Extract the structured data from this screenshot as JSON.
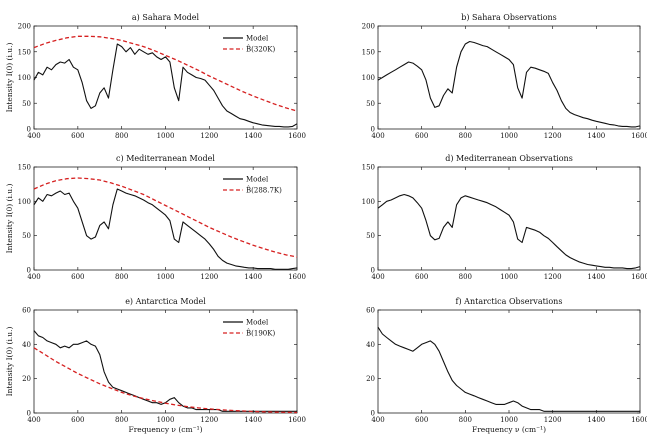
{
  "figure": {
    "xlabel": "Frequency ν (cm⁻¹)",
    "ylabel": "Intensity I(0) (i.u.)"
  },
  "colors": {
    "model": "#111111",
    "planck": "#d62020"
  },
  "chart_data": [
    {
      "id": "a",
      "type": "line",
      "title": "a) Sahara Model",
      "xlim": [
        400,
        1600
      ],
      "ylim": [
        0,
        200
      ],
      "xticks": [
        400,
        600,
        800,
        1000,
        1200,
        1400,
        1600
      ],
      "yticks": [
        0,
        50,
        100,
        150,
        200
      ],
      "ylabel": "Intensity I(0) (i.u.)",
      "xlabel": "",
      "legend": "top-right",
      "series": [
        {
          "name": "Model",
          "style": "solid",
          "color": "#111111",
          "x": [
            400,
            420,
            440,
            460,
            480,
            500,
            520,
            540,
            560,
            580,
            600,
            620,
            640,
            660,
            680,
            700,
            720,
            740,
            760,
            780,
            800,
            820,
            840,
            860,
            880,
            900,
            920,
            940,
            960,
            980,
            1000,
            1020,
            1040,
            1060,
            1080,
            1100,
            1120,
            1140,
            1160,
            1180,
            1200,
            1220,
            1240,
            1260,
            1280,
            1300,
            1320,
            1340,
            1360,
            1380,
            1400,
            1420,
            1440,
            1460,
            1480,
            1500,
            1520,
            1540,
            1560,
            1580,
            1600
          ],
          "y": [
            95,
            110,
            105,
            120,
            115,
            125,
            130,
            128,
            135,
            120,
            115,
            90,
            55,
            40,
            45,
            70,
            80,
            60,
            115,
            165,
            160,
            150,
            158,
            145,
            155,
            150,
            145,
            148,
            140,
            135,
            140,
            130,
            80,
            55,
            120,
            110,
            105,
            100,
            98,
            95,
            85,
            75,
            60,
            45,
            35,
            30,
            25,
            20,
            18,
            15,
            12,
            10,
            8,
            7,
            6,
            5,
            5,
            4,
            4,
            5,
            10
          ]
        },
        {
          "name": "B̂(320K)",
          "style": "dashed",
          "color": "#d62020",
          "x": [
            400,
            450,
            500,
            550,
            600,
            650,
            700,
            750,
            800,
            850,
            900,
            950,
            1000,
            1050,
            1100,
            1150,
            1200,
            1250,
            1300,
            1350,
            1400,
            1450,
            1500,
            1550,
            1600
          ],
          "y": [
            158,
            166,
            172,
            177,
            180,
            180,
            179,
            176,
            172,
            166,
            160,
            152,
            143,
            134,
            124,
            114,
            103,
            93,
            83,
            73,
            64,
            56,
            48,
            41,
            35
          ]
        }
      ]
    },
    {
      "id": "b",
      "type": "line",
      "title": "b) Sahara Observations",
      "xlim": [
        400,
        1600
      ],
      "ylim": [
        0,
        200
      ],
      "xticks": [
        400,
        600,
        800,
        1000,
        1200,
        1400,
        1600
      ],
      "yticks": [
        0,
        50,
        100,
        150,
        200
      ],
      "ylabel": "",
      "xlabel": "",
      "legend": "none",
      "series": [
        {
          "name": "",
          "style": "solid",
          "color": "#111111",
          "x": [
            400,
            420,
            440,
            460,
            480,
            500,
            520,
            540,
            560,
            580,
            600,
            620,
            640,
            660,
            680,
            700,
            720,
            740,
            760,
            780,
            800,
            820,
            840,
            860,
            880,
            900,
            920,
            940,
            960,
            980,
            1000,
            1020,
            1040,
            1060,
            1080,
            1100,
            1120,
            1140,
            1160,
            1180,
            1200,
            1220,
            1240,
            1260,
            1280,
            1300,
            1320,
            1340,
            1360,
            1380,
            1400,
            1420,
            1440,
            1460,
            1480,
            1500,
            1520,
            1540,
            1560,
            1580,
            1600
          ],
          "y": [
            95,
            100,
            105,
            110,
            115,
            120,
            125,
            130,
            128,
            122,
            115,
            95,
            60,
            42,
            45,
            65,
            78,
            70,
            120,
            150,
            165,
            170,
            168,
            165,
            162,
            160,
            155,
            150,
            145,
            140,
            135,
            125,
            80,
            60,
            110,
            120,
            118,
            115,
            112,
            108,
            90,
            75,
            55,
            40,
            32,
            28,
            25,
            22,
            20,
            17,
            15,
            13,
            11,
            9,
            8,
            6,
            5,
            5,
            4,
            4,
            6
          ]
        }
      ]
    },
    {
      "id": "c",
      "type": "line",
      "title": "c) Mediterranean Model",
      "xlim": [
        400,
        1600
      ],
      "ylim": [
        0,
        150
      ],
      "xticks": [
        400,
        600,
        800,
        1000,
        1200,
        1400,
        1600
      ],
      "yticks": [
        0,
        50,
        100,
        150
      ],
      "ylabel": "Intensity I(0) (i.u.)",
      "xlabel": "",
      "legend": "top-right",
      "series": [
        {
          "name": "Model",
          "style": "solid",
          "color": "#111111",
          "x": [
            400,
            420,
            440,
            460,
            480,
            500,
            520,
            540,
            560,
            580,
            600,
            620,
            640,
            660,
            680,
            700,
            720,
            740,
            760,
            780,
            800,
            820,
            840,
            860,
            880,
            900,
            920,
            940,
            960,
            980,
            1000,
            1020,
            1040,
            1060,
            1080,
            1100,
            1120,
            1140,
            1160,
            1180,
            1200,
            1220,
            1240,
            1260,
            1280,
            1300,
            1320,
            1340,
            1360,
            1380,
            1400,
            1420,
            1440,
            1460,
            1480,
            1500,
            1520,
            1540,
            1560,
            1580,
            1600
          ],
          "y": [
            95,
            105,
            100,
            110,
            108,
            112,
            115,
            110,
            112,
            100,
            90,
            70,
            50,
            45,
            48,
            65,
            70,
            60,
            95,
            118,
            115,
            112,
            110,
            108,
            105,
            102,
            98,
            95,
            90,
            85,
            80,
            72,
            45,
            40,
            70,
            65,
            60,
            55,
            50,
            45,
            38,
            30,
            20,
            14,
            10,
            8,
            6,
            5,
            4,
            3,
            3,
            2,
            2,
            2,
            2,
            1,
            1,
            1,
            1,
            2,
            3
          ]
        },
        {
          "name": "B̂(288.7K)",
          "style": "dashed",
          "color": "#d62020",
          "x": [
            400,
            450,
            500,
            550,
            600,
            650,
            700,
            750,
            800,
            850,
            900,
            950,
            1000,
            1050,
            1100,
            1150,
            1200,
            1250,
            1300,
            1350,
            1400,
            1450,
            1500,
            1550,
            1600
          ],
          "y": [
            118,
            125,
            130,
            133,
            134,
            133,
            131,
            127,
            122,
            116,
            110,
            102,
            94,
            86,
            78,
            70,
            62,
            55,
            48,
            42,
            36,
            31,
            26,
            22,
            19
          ]
        }
      ]
    },
    {
      "id": "d",
      "type": "line",
      "title": "d) Mediterranean Observations",
      "xlim": [
        400,
        1600
      ],
      "ylim": [
        0,
        150
      ],
      "xticks": [
        400,
        600,
        800,
        1000,
        1200,
        1400,
        1600
      ],
      "yticks": [
        0,
        50,
        100,
        150
      ],
      "ylabel": "",
      "xlabel": "",
      "legend": "none",
      "series": [
        {
          "name": "",
          "style": "solid",
          "color": "#111111",
          "x": [
            400,
            420,
            440,
            460,
            480,
            500,
            520,
            540,
            560,
            580,
            600,
            620,
            640,
            660,
            680,
            700,
            720,
            740,
            760,
            780,
            800,
            820,
            840,
            860,
            880,
            900,
            920,
            940,
            960,
            980,
            1000,
            1020,
            1040,
            1060,
            1080,
            1100,
            1120,
            1140,
            1160,
            1180,
            1200,
            1220,
            1240,
            1260,
            1280,
            1300,
            1320,
            1340,
            1360,
            1380,
            1400,
            1420,
            1440,
            1460,
            1480,
            1500,
            1520,
            1540,
            1560,
            1580,
            1600
          ],
          "y": [
            90,
            95,
            100,
            102,
            105,
            108,
            110,
            108,
            105,
            98,
            90,
            72,
            50,
            44,
            46,
            62,
            70,
            62,
            95,
            105,
            108,
            106,
            104,
            102,
            100,
            98,
            95,
            92,
            88,
            84,
            80,
            70,
            45,
            40,
            62,
            60,
            58,
            55,
            50,
            46,
            40,
            34,
            28,
            22,
            18,
            15,
            12,
            10,
            8,
            7,
            6,
            5,
            4,
            4,
            3,
            3,
            3,
            2,
            2,
            3,
            5
          ]
        }
      ]
    },
    {
      "id": "e",
      "type": "line",
      "title": "e) Antarctica Model",
      "xlim": [
        400,
        1600
      ],
      "ylim": [
        0,
        60
      ],
      "xticks": [
        400,
        600,
        800,
        1000,
        1200,
        1400,
        1600
      ],
      "yticks": [
        0,
        20,
        40,
        60
      ],
      "ylabel": "Intensity I(0) (i.u.)",
      "xlabel": "Frequency ν (cm⁻¹)",
      "legend": "top-right",
      "series": [
        {
          "name": "Model",
          "style": "solid",
          "color": "#111111",
          "x": [
            400,
            420,
            440,
            460,
            480,
            500,
            520,
            540,
            560,
            580,
            600,
            620,
            640,
            660,
            680,
            700,
            720,
            740,
            760,
            780,
            800,
            820,
            840,
            860,
            880,
            900,
            920,
            940,
            960,
            980,
            1000,
            1020,
            1040,
            1060,
            1080,
            1100,
            1120,
            1140,
            1160,
            1180,
            1200,
            1220,
            1240,
            1260,
            1280,
            1300,
            1320,
            1340,
            1360,
            1380,
            1400,
            1420,
            1440,
            1460,
            1480,
            1500,
            1520,
            1540,
            1560,
            1580,
            1600
          ],
          "y": [
            48,
            45,
            44,
            42,
            41,
            40,
            38,
            39,
            38,
            40,
            40,
            41,
            42,
            40,
            39,
            34,
            24,
            18,
            15,
            14,
            13,
            12,
            11,
            10,
            9,
            8,
            7,
            6,
            6,
            5,
            6,
            8,
            9,
            6,
            4,
            3,
            3,
            2,
            2,
            2,
            2,
            2,
            2,
            1,
            1,
            1,
            1,
            1,
            1,
            1,
            1,
            1,
            1,
            1,
            1,
            1,
            1,
            1,
            1,
            1,
            1
          ]
        },
        {
          "name": "B̂(190K)",
          "style": "dashed",
          "color": "#d62020",
          "x": [
            400,
            450,
            500,
            550,
            600,
            650,
            700,
            750,
            800,
            850,
            900,
            950,
            1000,
            1050,
            1100,
            1150,
            1200,
            1250,
            1300,
            1350,
            1400,
            1450,
            1500,
            1550,
            1600
          ],
          "y": [
            38,
            34,
            30,
            26.5,
            23,
            20,
            17,
            14.5,
            12,
            10,
            8.4,
            7,
            5.7,
            4.6,
            3.7,
            3.0,
            2.4,
            1.9,
            1.5,
            1.2,
            0.9,
            0.7,
            0.55,
            0.42,
            0.32
          ]
        }
      ]
    },
    {
      "id": "f",
      "type": "line",
      "title": "f) Antarctica Observations",
      "xlim": [
        400,
        1600
      ],
      "ylim": [
        0,
        60
      ],
      "xticks": [
        400,
        600,
        800,
        1000,
        1200,
        1400,
        1600
      ],
      "yticks": [
        0,
        20,
        40,
        60
      ],
      "ylabel": "",
      "xlabel": "Frequency ν (cm⁻¹)",
      "legend": "none",
      "series": [
        {
          "name": "",
          "style": "solid",
          "color": "#111111",
          "x": [
            400,
            420,
            440,
            460,
            480,
            500,
            520,
            540,
            560,
            580,
            600,
            620,
            640,
            660,
            680,
            700,
            720,
            740,
            760,
            780,
            800,
            820,
            840,
            860,
            880,
            900,
            920,
            940,
            960,
            980,
            1000,
            1020,
            1040,
            1060,
            1080,
            1100,
            1120,
            1140,
            1160,
            1180,
            1200,
            1220,
            1240,
            1260,
            1280,
            1300,
            1320,
            1340,
            1360,
            1380,
            1400,
            1420,
            1440,
            1460,
            1480,
            1500,
            1520,
            1540,
            1560,
            1580,
            1600
          ],
          "y": [
            50,
            46,
            44,
            42,
            40,
            39,
            38,
            37,
            36,
            38,
            40,
            41,
            42,
            40,
            36,
            30,
            24,
            19,
            16,
            14,
            12,
            11,
            10,
            9,
            8,
            7,
            6,
            5,
            5,
            5,
            6,
            7,
            6,
            4,
            3,
            2,
            2,
            2,
            1,
            1,
            1,
            1,
            1,
            1,
            1,
            1,
            1,
            1,
            1,
            1,
            1,
            1,
            1,
            1,
            1,
            1,
            1,
            1,
            1,
            1,
            1
          ]
        }
      ]
    }
  ]
}
